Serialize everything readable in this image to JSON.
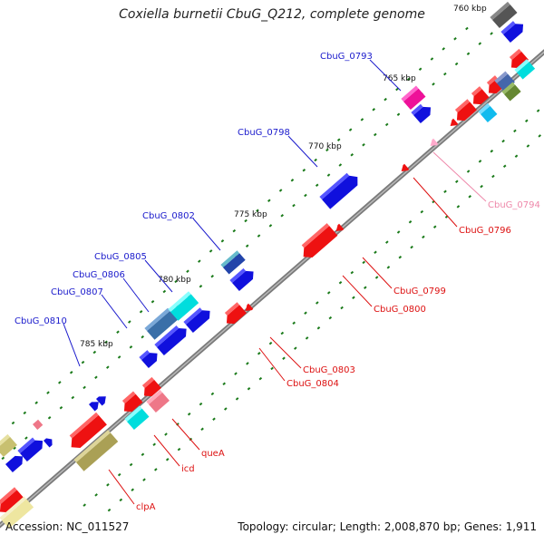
{
  "title": "Coxiella burnetii CbuG_Q212, complete genome",
  "footer": {
    "accession_label": "Accession:",
    "accession": "NC_011527",
    "topology_label": "Topology:",
    "topology": "circular",
    "length_label": "Length:",
    "length": "2,008,870 bp",
    "genes_label": "Genes:",
    "genes": "1,911"
  },
  "colors": {
    "backbone": "#8a8a8a",
    "tick_dot": "#1a7a1a",
    "label_forward": "#1a1acc",
    "label_reverse": "#dd1111",
    "label_pink": "#ee88aa"
  },
  "kbp_ticks": [
    "760 kbp",
    "765 kbp",
    "770 kbp",
    "775 kbp",
    "780 kbp",
    "785 kbp"
  ],
  "gene_labels": [
    {
      "name": "CbuG_0793",
      "strand": "forward"
    },
    {
      "name": "CbuG_0798",
      "strand": "forward"
    },
    {
      "name": "CbuG_0802",
      "strand": "forward"
    },
    {
      "name": "CbuG_0805",
      "strand": "forward"
    },
    {
      "name": "CbuG_0806",
      "strand": "forward"
    },
    {
      "name": "CbuG_0807",
      "strand": "forward"
    },
    {
      "name": "CbuG_0810",
      "strand": "forward"
    },
    {
      "name": "CbuG_0794",
      "strand": "pink"
    },
    {
      "name": "CbuG_0796",
      "strand": "reverse"
    },
    {
      "name": "CbuG_0799",
      "strand": "reverse"
    },
    {
      "name": "CbuG_0800",
      "strand": "reverse"
    },
    {
      "name": "CbuG_0803",
      "strand": "reverse"
    },
    {
      "name": "CbuG_0804",
      "strand": "reverse"
    },
    {
      "name": "queA",
      "strand": "reverse"
    },
    {
      "name": "icd",
      "strand": "reverse"
    },
    {
      "name": "clpA",
      "strand": "reverse"
    }
  ]
}
